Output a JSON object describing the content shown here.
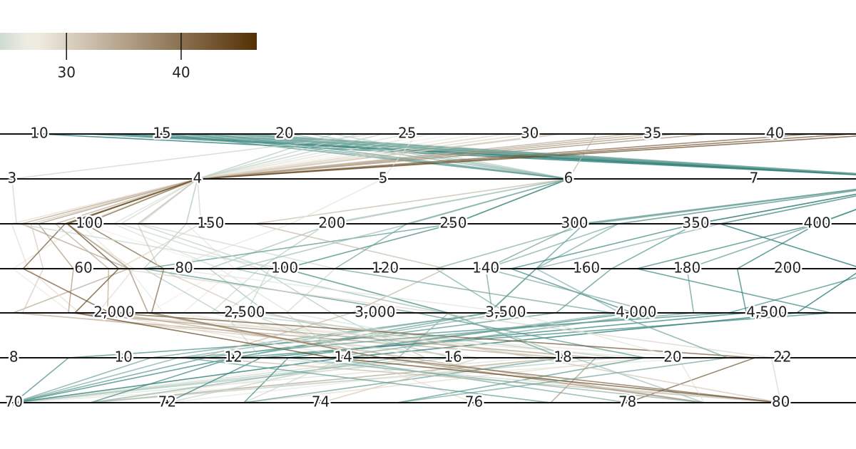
{
  "chart_data": {
    "type": "parallel",
    "colors": [
      "#01665e",
      "#f5f0e6",
      "#543005"
    ],
    "color_domain": [
      9,
      27,
      46.6
    ],
    "legend": {
      "lim": [
        24.2,
        46.6
      ],
      "ticks": [
        30,
        40
      ]
    },
    "axes": [
      {
        "xlim": [
          8.4,
          43.3
        ],
        "xticks": [
          10,
          15,
          20,
          25,
          30,
          35,
          40
        ]
      },
      {
        "xlim": [
          2.935,
          7.55
        ],
        "xticks": [
          3,
          4,
          5,
          6,
          7
        ]
      },
      {
        "xlim": [
          63.2,
          416
        ],
        "xticks": [
          100,
          150,
          200,
          250,
          300,
          350,
          400
        ]
      },
      {
        "xlim": [
          43.4,
          213.6
        ],
        "xticks": [
          60,
          80,
          100,
          120,
          140,
          160,
          180,
          200
        ]
      },
      {
        "xlim": [
          1563,
          4842
        ],
        "xticks": [
          {
            "value": 2000,
            "label": "2,000"
          },
          {
            "value": 2500,
            "label": "2,500"
          },
          {
            "value": 3000,
            "label": "3,000"
          },
          {
            "value": 3500,
            "label": "3,500"
          },
          {
            "value": 4000,
            "label": "4,000"
          },
          {
            "value": 4500,
            "label": "4,500"
          }
        ]
      },
      {
        "xlim": [
          7.75,
          23.34
        ],
        "xticks": [
          8,
          10,
          12,
          14,
          16,
          18,
          20,
          22
        ]
      },
      {
        "xlim": [
          69.82,
          80.98
        ],
        "xticks": [
          70,
          72,
          74,
          76,
          78,
          80
        ]
      }
    ],
    "rows": [
      [
        18,
        8,
        307,
        130,
        3504,
        12,
        70
      ],
      [
        15,
        8,
        350,
        165,
        3693,
        11.5,
        70
      ],
      [
        18,
        8,
        318,
        150,
        3436,
        11,
        70
      ],
      [
        16,
        8,
        304,
        150,
        3433,
        12,
        70
      ],
      [
        17,
        8,
        302,
        140,
        3449,
        10.5,
        70
      ],
      [
        14,
        8,
        454,
        220,
        4354,
        9,
        70
      ],
      [
        24,
        4,
        113,
        95,
        2372,
        15,
        70
      ],
      [
        22,
        6,
        198,
        95,
        2833,
        15.5,
        70
      ],
      [
        27,
        4,
        97,
        88,
        2130,
        14.5,
        70
      ],
      [
        26,
        4,
        97,
        46,
        1835,
        20.5,
        70
      ],
      [
        25,
        4,
        110,
        87,
        2672,
        17.5,
        70
      ],
      [
        21,
        6,
        200,
        85,
        2587,
        16,
        70
      ],
      [
        10,
        8,
        360,
        215,
        4615,
        14,
        70
      ],
      [
        28,
        4,
        140,
        90,
        2264,
        15.5,
        71
      ],
      [
        19,
        6,
        250,
        100,
        3282,
        15,
        71
      ],
      [
        13,
        8,
        400,
        170,
        4746,
        12,
        71
      ],
      [
        35,
        4,
        72,
        69,
        1613,
        18,
        71
      ],
      [
        22,
        4,
        140,
        72,
        2408,
        19,
        71
      ],
      [
        12,
        8,
        400,
        190,
        4422,
        12.5,
        72
      ],
      [
        26,
        4,
        96,
        69,
        2189,
        18,
        72
      ],
      [
        24,
        4,
        121,
        110,
        2660,
        14,
        73
      ],
      [
        13,
        8,
        350,
        145,
        3988,
        13,
        73
      ],
      [
        29,
        4,
        68,
        49,
        1867,
        19.5,
        73
      ],
      [
        16,
        6,
        250,
        100,
        3278,
        18,
        73
      ],
      [
        31,
        4,
        76,
        52,
        1649,
        16.5,
        74
      ],
      [
        15,
        6,
        250,
        72,
        3158,
        19.5,
        75
      ],
      [
        23,
        4,
        120,
        97,
        2506,
        14.5,
        72
      ],
      [
        29,
        4,
        90,
        70,
        1937,
        14.2,
        76
      ],
      [
        17.5,
        8,
        318,
        140,
        4080,
        13.7,
        78
      ],
      [
        36,
        4,
        79,
        58,
        1825,
        18.6,
        77
      ],
      [
        43.1,
        4,
        90,
        48,
        1985,
        21.5,
        78
      ],
      [
        20.2,
        6,
        232,
        90,
        3265,
        18.2,
        79
      ],
      [
        34.1,
        4,
        86,
        65,
        1975,
        15.2,
        79
      ],
      [
        41.5,
        4,
        98,
        76,
        2144,
        14.7,
        80
      ],
      [
        32.7,
        6,
        168,
        132,
        2910,
        11.4,
        80
      ],
      [
        23.7,
        3,
        70,
        100,
        2420,
        12.5,
        80
      ],
      [
        30,
        4,
        146,
        67,
        3250,
        21.8,
        80
      ],
      [
        37.3,
        4,
        91,
        69,
        2130,
        14.7,
        79
      ],
      [
        18.5,
        8,
        360,
        150,
        3940,
        13,
        79
      ],
      [
        25.4,
        5,
        183,
        77,
        3530,
        20.1,
        79
      ],
      [
        44.6,
        4,
        91,
        67,
        1850,
        13.8,
        80
      ],
      [
        31.3,
        4,
        120,
        75,
        2542,
        17.5,
        80
      ],
      [
        17,
        6,
        231,
        110,
        3907,
        21,
        75
      ],
      [
        16,
        8,
        400,
        180,
        4220,
        11.1,
        77
      ]
    ]
  }
}
